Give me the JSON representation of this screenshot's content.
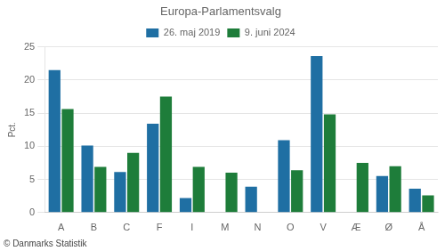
{
  "chart_data": {
    "type": "bar",
    "title": "Europa-Parlamentsvalg",
    "ylabel": "Pct.",
    "annotations": [
      "© Danmarks Statistik"
    ],
    "categories": [
      "A",
      "B",
      "C",
      "F",
      "I",
      "M",
      "N",
      "O",
      "V",
      "Æ",
      "Ø",
      "Å"
    ],
    "series": [
      {
        "name": "26. maj 2019",
        "color": "#1f6fa3",
        "values": [
          21.5,
          10.1,
          6.1,
          13.4,
          2.2,
          0.0,
          3.9,
          10.9,
          23.6,
          0.0,
          5.5,
          3.6
        ]
      },
      {
        "name": "9. juni 2024",
        "color": "#1e7d3a",
        "values": [
          15.6,
          6.9,
          9.0,
          17.5,
          6.9,
          6.0,
          0.0,
          6.4,
          14.8,
          7.5,
          7.0,
          2.6
        ]
      }
    ],
    "ylim": [
      0,
      25
    ],
    "yticks": [
      0,
      5,
      10,
      15,
      20,
      25
    ],
    "grid": true,
    "legend": "top"
  }
}
